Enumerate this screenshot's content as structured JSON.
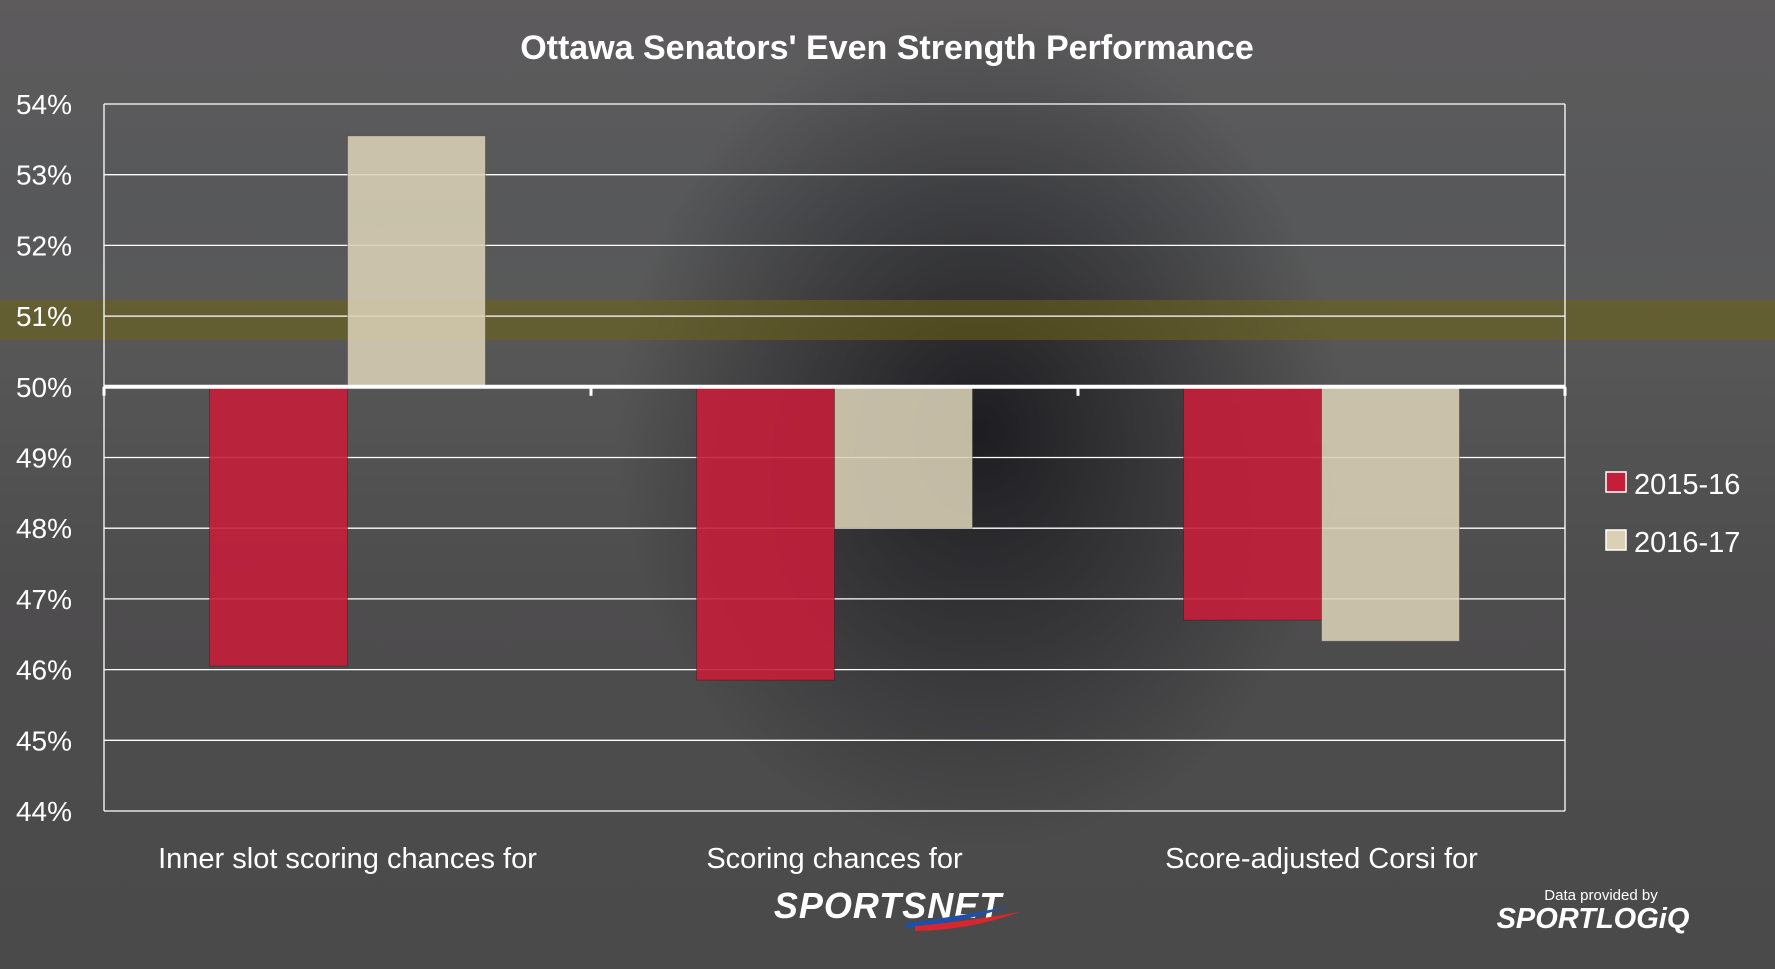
{
  "chart_data": {
    "type": "bar",
    "title": "Ottawa Senators' Even Strength Performance",
    "xlabel": "",
    "ylabel": "",
    "ylim": [
      44,
      54
    ],
    "baseline": 50,
    "ytick_values": [
      44,
      45,
      46,
      47,
      48,
      49,
      50,
      51,
      52,
      53,
      54
    ],
    "ytick_labels": [
      "44%",
      "45%",
      "46%",
      "47%",
      "48%",
      "49%",
      "50%",
      "51%",
      "52%",
      "53%",
      "54%"
    ],
    "categories": [
      "Inner slot scoring chances for",
      "Scoring chances for",
      "Score-adjusted Corsi for"
    ],
    "series": [
      {
        "name": "2015-16",
        "values": [
          46.05,
          45.85,
          46.7
        ],
        "color": "#c41e3a"
      },
      {
        "name": "2016-17",
        "values": [
          53.55,
          48.0,
          46.4
        ],
        "color": "#d9d0b6"
      }
    ],
    "grid": true,
    "legend_position": "right",
    "gridline_color": "#ffffff"
  },
  "branding": {
    "network": "SPORTSNET",
    "provider_prefix": "Data provided by",
    "provider": "SPORTLOGiQ"
  }
}
